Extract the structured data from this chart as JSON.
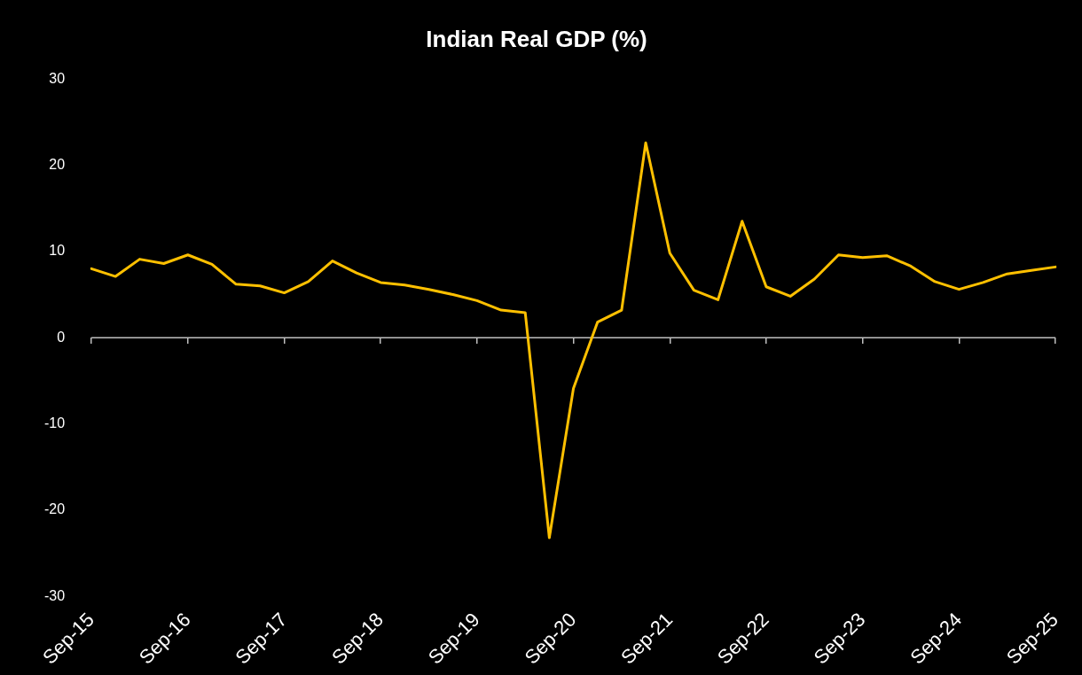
{
  "chart_data": {
    "type": "line",
    "title": "Indian Real GDP (%)",
    "categories": [
      "Sep-15",
      null,
      null,
      null,
      "Sep-16",
      null,
      null,
      null,
      "Sep-17",
      null,
      null,
      null,
      "Sep-18",
      null,
      null,
      null,
      "Sep-19",
      null,
      null,
      null,
      "Sep-20",
      null,
      null,
      null,
      "Sep-21",
      null,
      null,
      null,
      "Sep-22",
      null,
      null,
      null,
      "Sep-23",
      null,
      null,
      null,
      "Sep-24",
      null,
      null,
      null,
      "Sep-25"
    ],
    "series": [
      {
        "color": "#ffc000",
        "values": [
          8.0,
          7.1,
          9.1,
          8.6,
          9.6,
          8.5,
          6.2,
          6.0,
          5.2,
          6.5,
          8.9,
          7.5,
          6.4,
          6.1,
          5.6,
          5.0,
          4.3,
          3.2,
          2.9,
          -23.2,
          -5.9,
          1.8,
          3.2,
          22.6,
          9.8,
          5.5,
          4.4,
          13.5,
          5.9,
          4.8,
          6.8,
          9.6,
          9.3,
          9.5,
          8.3,
          6.5,
          5.6,
          6.4,
          7.4,
          7.8,
          8.2
        ]
      }
    ],
    "ref_lines": [
      {
        "axis": "y",
        "value": 0,
        "color": "#bfbfbf"
      }
    ],
    "ylim": [
      -30,
      30
    ],
    "yticks": [
      -30,
      -20,
      -10,
      0,
      10,
      20,
      30
    ],
    "grid": false,
    "legend": false,
    "marker": "none",
    "line_style": "solid"
  }
}
